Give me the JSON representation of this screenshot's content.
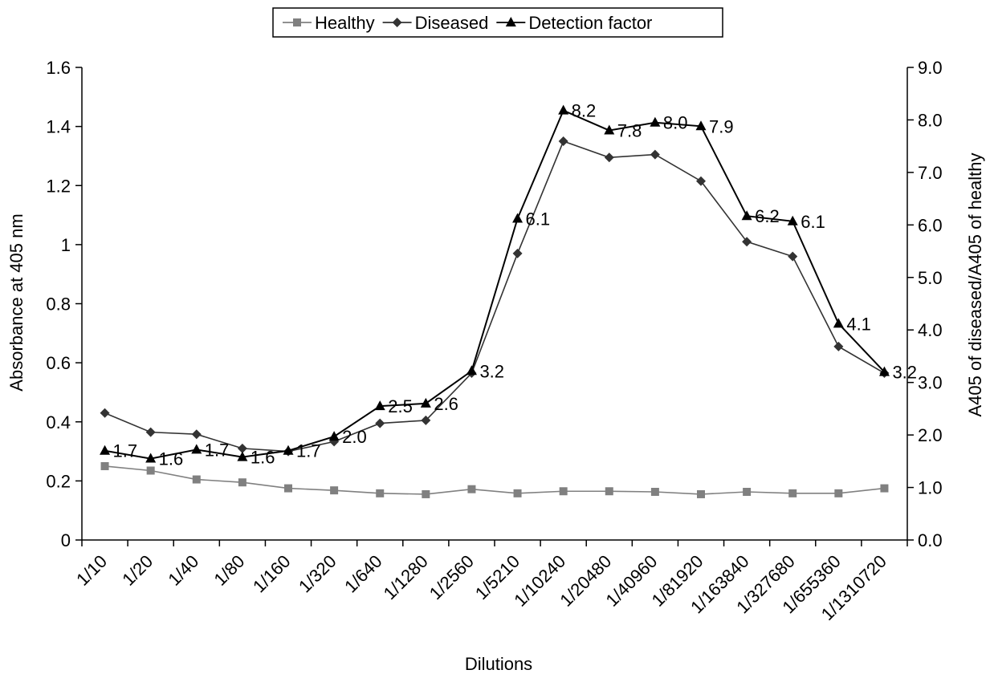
{
  "chart_data": {
    "type": "line",
    "title": "",
    "xlabel": "Dilutions",
    "ylabel": "Absorbance at 405 nm",
    "y2label": "A405 of diseased/A405 of healthy",
    "categories": [
      "1/10",
      "1/20",
      "1/40",
      "1/80",
      "1/160",
      "1/320",
      "1/640",
      "1/1280",
      "1/2560",
      "1/5210",
      "1/10240",
      "1/20480",
      "1/40960",
      "1/81920",
      "1/163840",
      "1/327680",
      "1/655360",
      "1/1310720"
    ],
    "ylim": [
      0,
      1.6
    ],
    "y_ticks": [
      "0",
      "0.2",
      "0.4",
      "0.6",
      "0.8",
      "1",
      "1.2",
      "1.4",
      "1.6"
    ],
    "y2lim": [
      0,
      9
    ],
    "y2_ticks": [
      "0.0",
      "1.0",
      "2.0",
      "3.0",
      "4.0",
      "5.0",
      "6.0",
      "7.0",
      "8.0",
      "9.0"
    ],
    "grid": false,
    "legend_position": "top-center",
    "series": [
      {
        "name": "Healthy",
        "axis": "left",
        "marker": "square",
        "color": "#808080",
        "values": [
          0.25,
          0.235,
          0.205,
          0.195,
          0.175,
          0.168,
          0.158,
          0.155,
          0.172,
          0.158,
          0.165,
          0.165,
          0.163,
          0.155,
          0.163,
          0.158,
          0.158,
          0.175
        ]
      },
      {
        "name": "Diseased",
        "axis": "left",
        "marker": "diamond",
        "color": "#333333",
        "values": [
          0.43,
          0.365,
          0.358,
          0.31,
          0.3,
          0.333,
          0.395,
          0.405,
          0.565,
          0.97,
          1.35,
          1.295,
          1.305,
          1.215,
          1.01,
          0.96,
          0.655,
          0.565
        ]
      },
      {
        "name": "Detection factor",
        "axis": "right",
        "marker": "triangle",
        "color": "#000000",
        "values": [
          1.7,
          1.55,
          1.72,
          1.58,
          1.7,
          1.97,
          2.55,
          2.6,
          3.22,
          6.12,
          8.18,
          7.8,
          7.95,
          7.88,
          6.17,
          6.07,
          4.12,
          3.2
        ],
        "labels": [
          "1.7",
          "1.6",
          "1.7",
          "1.6",
          "1.7",
          "2.0",
          "2.5",
          "2.6",
          "3.2",
          "6.1",
          "8.2",
          "7.8",
          "8.0",
          "7.9",
          "6.2",
          "6.1",
          "4.1",
          "3.2"
        ]
      }
    ]
  }
}
